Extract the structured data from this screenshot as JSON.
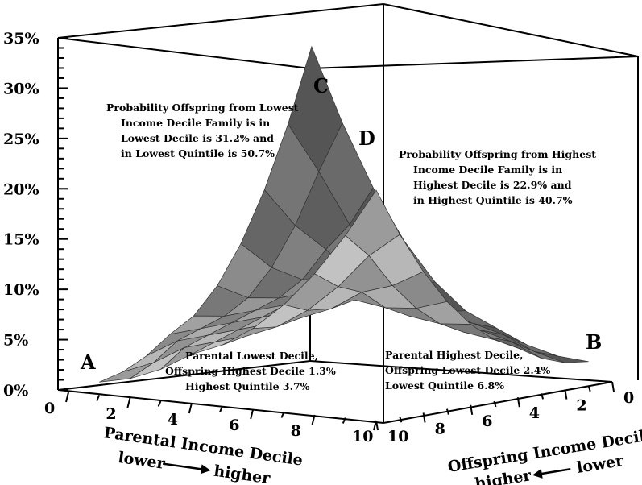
{
  "chart_data": {
    "type": "surface3d",
    "title": "",
    "y_axis": {
      "ticks": [
        "0%",
        "5%",
        "10%",
        "15%",
        "20%",
        "25%",
        "30%",
        "35%"
      ],
      "range": [
        0,
        35
      ]
    },
    "x_axis": {
      "label_line1": "Parental Income Decile",
      "label_lower": "lower",
      "label_higher": "higher",
      "ticks": [
        "0",
        "2",
        "4",
        "6",
        "8",
        "10"
      ]
    },
    "z_axis": {
      "label_line1": "Offspring Income Decile",
      "label_higher": "higher",
      "label_lower": "lower",
      "ticks": [
        "0",
        "2",
        "4",
        "6",
        "8",
        "10"
      ]
    },
    "corner_labels": {
      "a": "A",
      "b": "B",
      "c": "C",
      "d": "D"
    },
    "annotations": {
      "c": [
        "Probability Offspring from Lowest",
        "Income Decile Family is in",
        "Lowest Decile is 31.2% and",
        "in Lowest Quintile is 50.7%"
      ],
      "d": [
        "Probability Offspring from Highest",
        "Income Decile Family is in",
        "Highest Decile is 22.9% and",
        "in Highest Quintile is 40.7%"
      ],
      "a": [
        "Parental Lowest Decile,",
        "Offspring Highest Decile 1.3%",
        "Highest Quintile 3.7%"
      ],
      "b": [
        "Parental Highest Decile,",
        "Offspring Lowest Decile 2.4%",
        "Lowest Quintile 6.8%"
      ]
    },
    "key_points": [
      {
        "label": "C",
        "parental_decile": 1,
        "offspring_decile": 1,
        "value": 31.2
      },
      {
        "label": "D",
        "parental_decile": 10,
        "offspring_decile": 10,
        "value": 22.9
      },
      {
        "label": "A",
        "parental_decile": 1,
        "offspring_decile": 10,
        "value": 1.3
      },
      {
        "label": "B",
        "parental_decile": 10,
        "offspring_decile": 1,
        "value": 2.4
      }
    ]
  }
}
